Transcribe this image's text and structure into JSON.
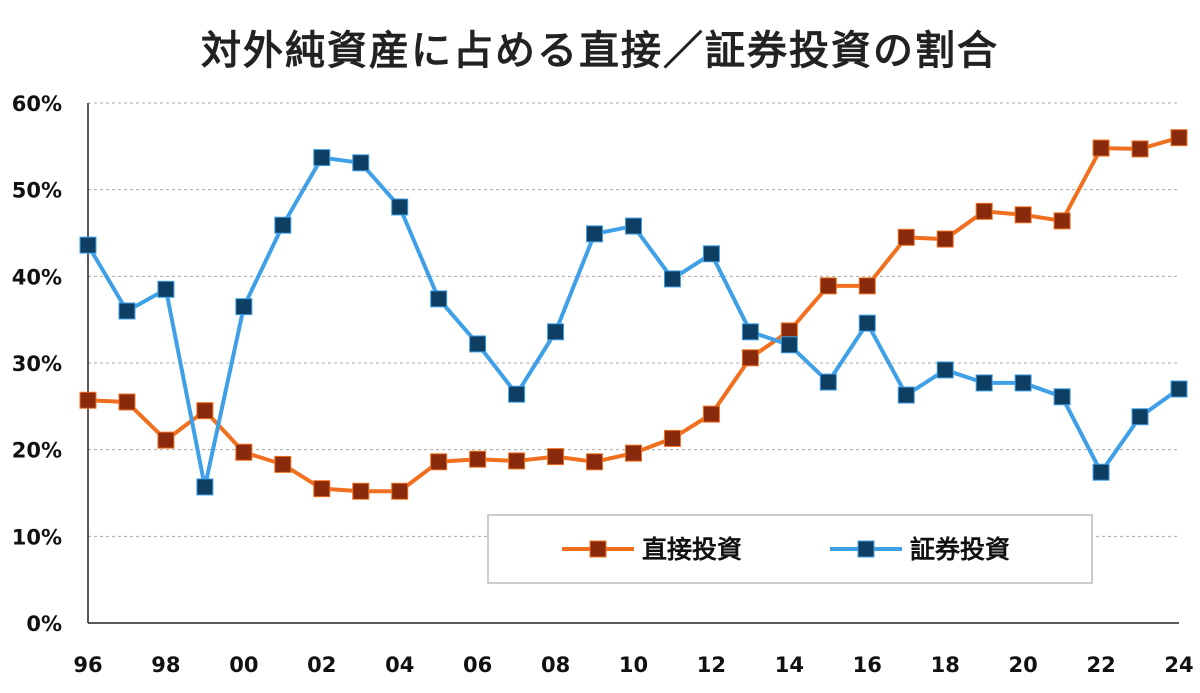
{
  "chart_data": {
    "type": "line",
    "title": "対外純資産に占める直接／証券投資の割合",
    "xlabel": "",
    "ylabel": "",
    "x": [
      "96",
      "97",
      "98",
      "99",
      "00",
      "01",
      "02",
      "03",
      "04",
      "05",
      "06",
      "07",
      "08",
      "09",
      "10",
      "11",
      "12",
      "13",
      "14",
      "15",
      "16",
      "17",
      "18",
      "19",
      "20",
      "21",
      "22",
      "23",
      "24"
    ],
    "x_tick_labels": [
      "96",
      "98",
      "00",
      "02",
      "04",
      "06",
      "08",
      "10",
      "12",
      "14",
      "16",
      "18",
      "20",
      "22",
      "24"
    ],
    "y_tick_labels": [
      "0%",
      "10%",
      "20%",
      "30%",
      "40%",
      "50%",
      "60%"
    ],
    "ylim": [
      0,
      60
    ],
    "grid": true,
    "legend_placement": "bottom-right",
    "series": [
      {
        "name": "直接投資",
        "color": "#f07020",
        "marker_color": "#8a2a0c",
        "values": [
          25.7,
          25.5,
          21.1,
          24.5,
          19.7,
          18.3,
          15.5,
          15.2,
          15.2,
          18.6,
          18.9,
          18.7,
          19.2,
          18.6,
          19.6,
          21.3,
          24.1,
          30.6,
          33.7,
          38.9,
          38.9,
          44.5,
          44.3,
          47.5,
          47.1,
          46.4,
          54.8,
          54.7,
          56.0
        ]
      },
      {
        "name": "証券投資",
        "color": "#3fa0e8",
        "marker_color": "#0e3f63",
        "values": [
          43.6,
          36.0,
          38.5,
          15.7,
          36.5,
          45.9,
          53.7,
          53.1,
          48.0,
          37.4,
          32.2,
          26.4,
          33.6,
          44.9,
          45.8,
          39.7,
          42.6,
          33.6,
          32.1,
          27.8,
          34.6,
          26.3,
          29.2,
          27.7,
          27.7,
          26.1,
          17.4,
          23.8,
          27.0
        ]
      }
    ]
  }
}
